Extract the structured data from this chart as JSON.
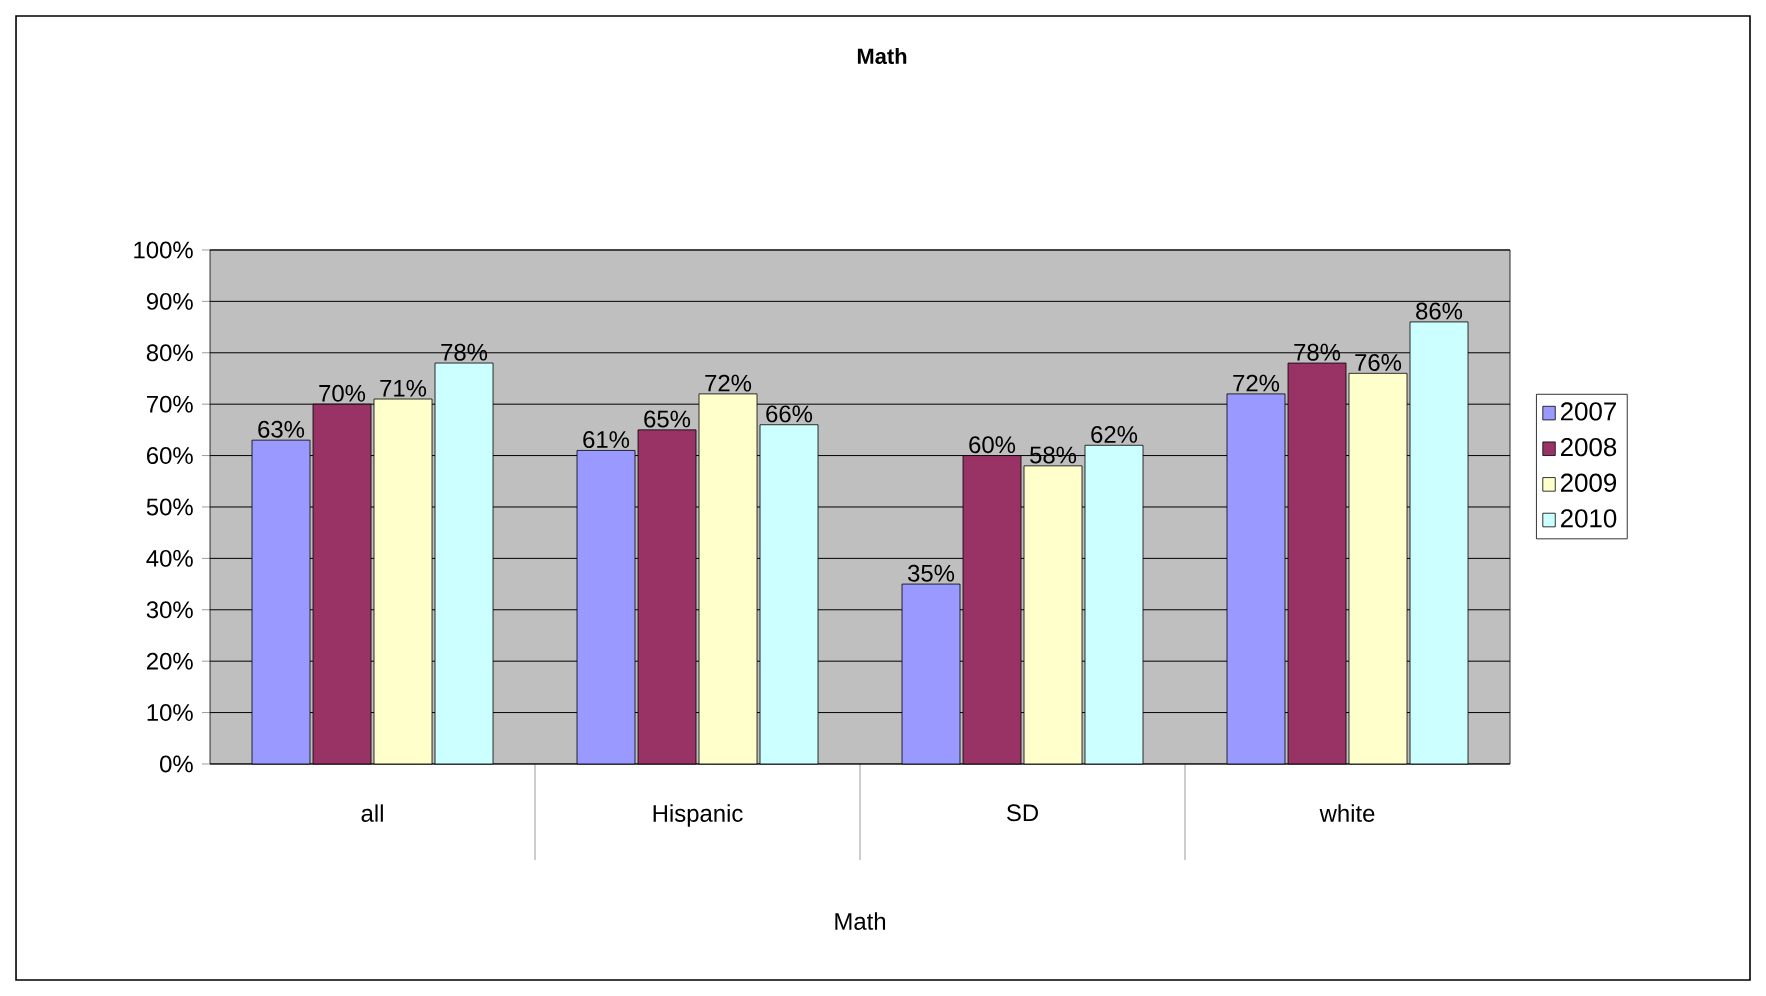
{
  "chart_data": {
    "type": "bar",
    "title": "Math",
    "xlabel": "Math",
    "categories": [
      "all",
      "Hispanic",
      "SD",
      "white"
    ],
    "series": [
      {
        "name": "2007",
        "color": "#9999ff",
        "values": [
          63,
          61,
          35,
          72
        ],
        "value_labels": [
          "63%",
          "61%",
          "35%",
          "72%"
        ]
      },
      {
        "name": "2008",
        "color": "#993366",
        "values": [
          70,
          65,
          60,
          78
        ],
        "value_labels": [
          "70%",
          "65%",
          "60%",
          "78%"
        ]
      },
      {
        "name": "2009",
        "color": "#ffffcc",
        "values": [
          71,
          72,
          58,
          76
        ],
        "value_labels": [
          "71%",
          "72%",
          "58%",
          "76%"
        ]
      },
      {
        "name": "2010",
        "color": "#ccffff",
        "values": [
          78,
          66,
          62,
          86
        ],
        "value_labels": [
          "78%",
          "66%",
          "62%",
          "86%"
        ]
      }
    ],
    "ylim": [
      0,
      100
    ],
    "yticks": [
      {
        "value": 0,
        "label": "0%"
      },
      {
        "value": 10,
        "label": "10%"
      },
      {
        "value": 20,
        "label": "20%"
      },
      {
        "value": 30,
        "label": "30%"
      },
      {
        "value": 40,
        "label": "40%"
      },
      {
        "value": 50,
        "label": "50%"
      },
      {
        "value": 60,
        "label": "60%"
      },
      {
        "value": 70,
        "label": "70%"
      },
      {
        "value": 80,
        "label": "80%"
      },
      {
        "value": 90,
        "label": "90%"
      },
      {
        "value": 100,
        "label": "100%"
      }
    ],
    "grid": "y",
    "legend": "right"
  }
}
